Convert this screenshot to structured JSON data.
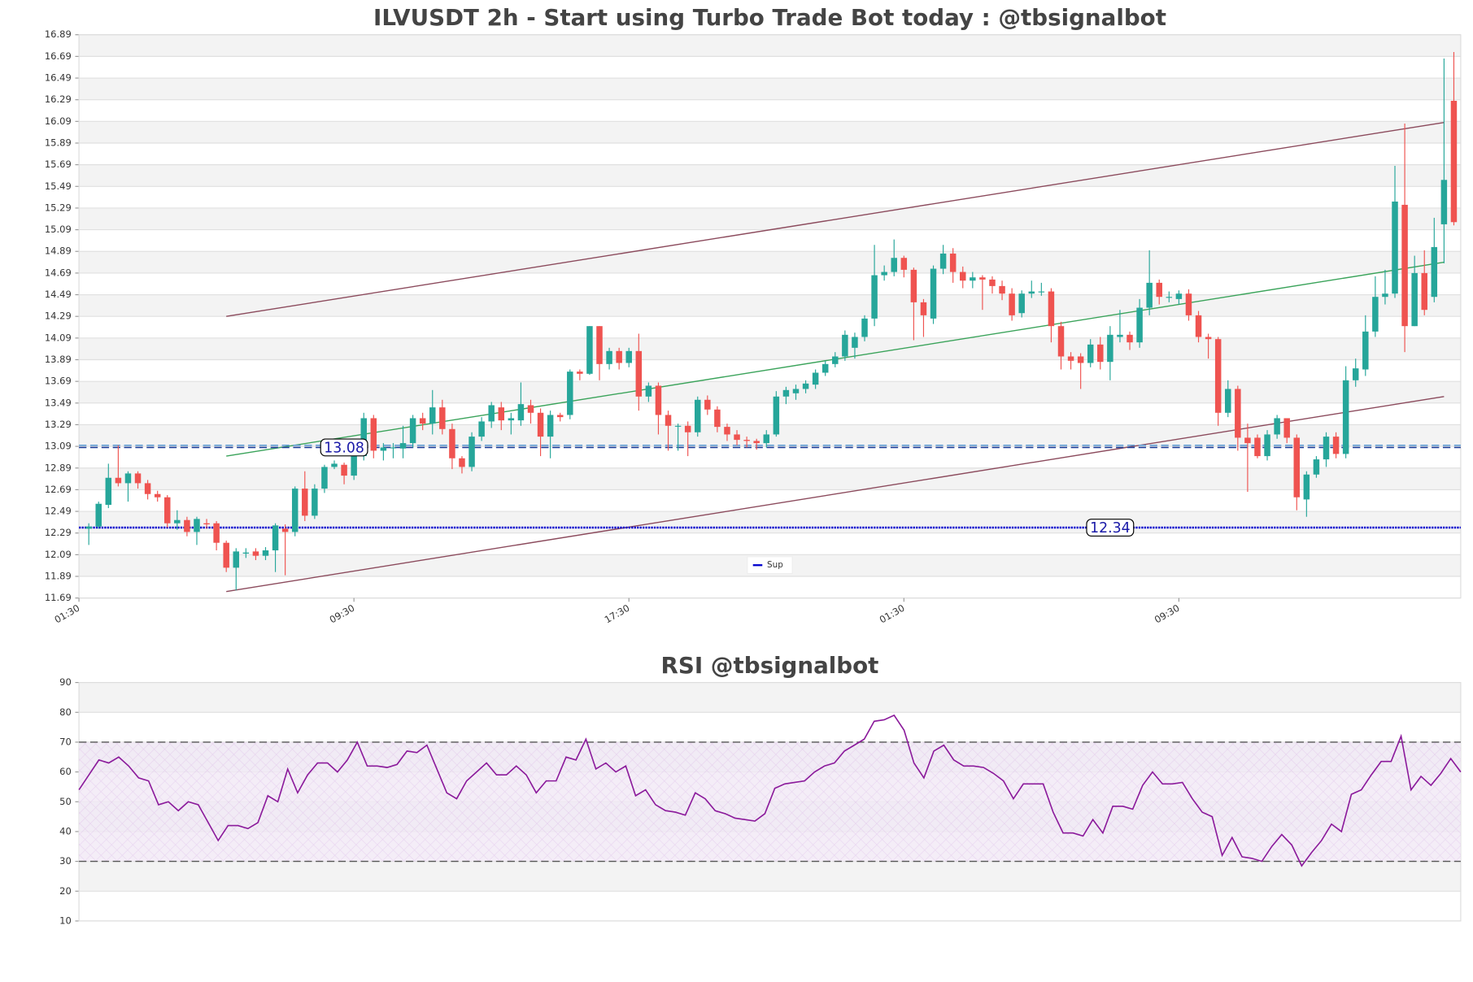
{
  "chart_data": [
    {
      "type": "candlestick",
      "title": "ILVUSDT 2h - Start using Turbo Trade Bot today : @tbsignalbot",
      "up_color": "#26a69a",
      "down_color": "#ef5350",
      "open": [
        12.33,
        12.35,
        12.55,
        12.8,
        12.75,
        12.84,
        12.75,
        12.65,
        12.62,
        12.38,
        12.41,
        12.3,
        12.38,
        12.38,
        12.2,
        11.97,
        12.1,
        12.12,
        12.08,
        12.13,
        12.33,
        12.3,
        12.7,
        12.45,
        12.7,
        12.9,
        12.92,
        12.82,
        13.0,
        13.35,
        13.05,
        13.08,
        13.07,
        13.12,
        13.35,
        13.3,
        13.45,
        13.25,
        12.98,
        12.9,
        13.18,
        13.32,
        13.45,
        13.33,
        13.33,
        13.47,
        13.4,
        13.18,
        13.38,
        13.38,
        13.78,
        13.76,
        14.2,
        13.85,
        13.97,
        13.86,
        13.97,
        13.55,
        13.65,
        13.38,
        13.28,
        13.28,
        13.22,
        13.52,
        13.43,
        13.27,
        13.2,
        13.15,
        13.14,
        13.12,
        13.2,
        13.55,
        13.58,
        13.62,
        13.66,
        13.77,
        13.85,
        13.92,
        14.0,
        14.1,
        14.27,
        14.67,
        14.7,
        14.83,
        14.72,
        14.42,
        14.27,
        14.73,
        14.87,
        14.7,
        14.62,
        14.65,
        14.63,
        14.57,
        14.5,
        14.32,
        14.5,
        14.52,
        14.52,
        14.2,
        13.92,
        13.92,
        13.86,
        14.03,
        13.87,
        14.1,
        14.12,
        14.05,
        14.37,
        14.6,
        14.47,
        14.45,
        14.5,
        14.3,
        14.1,
        14.08,
        13.4,
        13.62,
        13.17,
        13.17,
        13.0,
        13.2,
        13.35,
        13.17,
        12.6,
        12.83,
        12.97,
        13.18,
        13.02,
        13.7,
        13.8,
        14.15,
        14.47,
        14.5,
        15.32,
        14.2,
        14.69,
        14.47,
        15.14,
        16.28
      ],
      "high": [
        12.38,
        12.58,
        12.93,
        13.1,
        12.86,
        12.86,
        12.78,
        12.68,
        12.64,
        12.5,
        12.44,
        12.44,
        12.42,
        12.4,
        12.22,
        12.15,
        12.15,
        12.15,
        12.16,
        12.38,
        12.37,
        12.72,
        12.86,
        12.74,
        12.92,
        12.96,
        12.94,
        13.04,
        13.4,
        13.38,
        13.12,
        13.12,
        13.28,
        13.38,
        13.4,
        13.61,
        13.52,
        13.3,
        13.0,
        13.22,
        13.36,
        13.5,
        13.5,
        13.4,
        13.68,
        13.52,
        13.44,
        13.42,
        13.4,
        13.8,
        13.8,
        14.2,
        14.2,
        14.0,
        14.0,
        14.0,
        14.13,
        13.68,
        13.68,
        13.42,
        13.3,
        13.32,
        13.55,
        13.56,
        13.46,
        13.3,
        13.24,
        13.18,
        13.16,
        13.24,
        13.6,
        13.64,
        13.66,
        13.7,
        13.8,
        13.88,
        13.96,
        14.16,
        14.14,
        14.3,
        14.95,
        14.76,
        15.0,
        14.85,
        14.74,
        14.45,
        14.76,
        14.95,
        14.92,
        14.75,
        14.7,
        14.67,
        14.66,
        14.62,
        14.55,
        14.53,
        14.62,
        14.6,
        14.55,
        14.24,
        13.96,
        13.95,
        14.08,
        14.1,
        14.2,
        14.35,
        14.15,
        14.45,
        14.9,
        14.63,
        14.52,
        14.53,
        14.54,
        14.34,
        14.13,
        14.1,
        13.7,
        13.65,
        13.3,
        13.2,
        13.24,
        13.38,
        13.3,
        13.2,
        12.86,
        13.0,
        13.22,
        13.22,
        13.83,
        13.9,
        14.3,
        14.66,
        14.72,
        15.68,
        16.07,
        14.85,
        14.9,
        15.2,
        16.67,
        16.73
      ],
      "low": [
        12.18,
        12.33,
        12.52,
        12.72,
        12.58,
        12.7,
        12.6,
        12.58,
        12.34,
        12.32,
        12.26,
        12.18,
        12.33,
        12.13,
        11.93,
        11.76,
        12.06,
        12.04,
        12.04,
        11.93,
        11.9,
        12.26,
        12.4,
        12.42,
        12.66,
        12.88,
        12.74,
        12.78,
        12.96,
        12.98,
        12.96,
        12.98,
        12.98,
        13.08,
        13.24,
        13.2,
        13.2,
        12.88,
        12.84,
        12.86,
        13.14,
        13.26,
        13.24,
        13.2,
        13.28,
        13.3,
        13.0,
        12.98,
        13.32,
        13.34,
        13.7,
        13.75,
        13.7,
        13.8,
        13.8,
        13.82,
        13.42,
        13.5,
        13.2,
        13.05,
        13.05,
        13.0,
        13.18,
        13.38,
        13.22,
        13.14,
        13.1,
        13.08,
        13.06,
        13.08,
        13.18,
        13.48,
        13.52,
        13.58,
        13.62,
        13.74,
        13.82,
        13.88,
        13.9,
        14.06,
        14.2,
        14.62,
        14.66,
        14.65,
        14.07,
        14.1,
        14.22,
        14.68,
        14.6,
        14.55,
        14.55,
        14.35,
        14.5,
        14.44,
        14.25,
        14.28,
        14.46,
        14.48,
        14.05,
        13.8,
        13.8,
        13.62,
        13.82,
        13.8,
        13.7,
        14.05,
        13.98,
        14.0,
        14.3,
        14.4,
        14.42,
        14.4,
        14.25,
        14.05,
        13.9,
        13.28,
        13.36,
        13.05,
        12.67,
        12.98,
        12.96,
        13.16,
        13.12,
        12.5,
        12.44,
        12.8,
        12.9,
        12.98,
        12.98,
        13.64,
        13.74,
        14.1,
        14.4,
        14.46,
        13.96,
        14.2,
        14.3,
        14.42,
        14.78,
        15.13
      ],
      "close": [
        12.35,
        12.56,
        12.8,
        12.75,
        12.84,
        12.75,
        12.65,
        12.62,
        12.38,
        12.41,
        12.3,
        12.42,
        12.37,
        12.2,
        11.97,
        12.12,
        12.11,
        12.08,
        12.13,
        12.36,
        12.3,
        12.7,
        12.45,
        12.7,
        12.9,
        12.93,
        12.82,
        13.0,
        13.35,
        13.05,
        13.08,
        13.08,
        13.12,
        13.35,
        13.3,
        13.45,
        13.25,
        12.98,
        12.9,
        13.18,
        13.32,
        13.47,
        13.33,
        13.35,
        13.48,
        13.4,
        13.18,
        13.38,
        13.36,
        13.78,
        13.76,
        14.2,
        13.85,
        13.97,
        13.86,
        13.97,
        13.55,
        13.65,
        13.38,
        13.28,
        13.28,
        13.22,
        13.52,
        13.43,
        13.27,
        13.2,
        13.15,
        13.14,
        13.12,
        13.2,
        13.55,
        13.61,
        13.62,
        13.67,
        13.77,
        13.85,
        13.92,
        14.12,
        14.1,
        14.27,
        14.67,
        14.7,
        14.83,
        14.72,
        14.42,
        14.3,
        14.73,
        14.87,
        14.7,
        14.62,
        14.65,
        14.63,
        14.57,
        14.5,
        14.3,
        14.5,
        14.52,
        14.52,
        14.2,
        13.92,
        13.88,
        13.86,
        14.03,
        13.87,
        14.12,
        14.12,
        14.05,
        14.37,
        14.6,
        14.47,
        14.47,
        14.5,
        14.3,
        14.1,
        14.08,
        13.4,
        13.62,
        13.17,
        13.12,
        13.0,
        13.2,
        13.35,
        13.17,
        12.62,
        12.83,
        12.97,
        13.18,
        13.02,
        13.7,
        13.81,
        14.15,
        14.47,
        14.5,
        15.35,
        14.2,
        14.69,
        14.35,
        14.93,
        15.55,
        15.16
      ],
      "xlim": [
        -1,
        139.7
      ],
      "xticks": [
        {
          "value": -1,
          "label": "01:30"
        },
        {
          "value": 27,
          "label": "09:30"
        },
        {
          "value": 55,
          "label": "17:30"
        },
        {
          "value": 83,
          "label": "01:30"
        },
        {
          "value": 111,
          "label": "09:30"
        }
      ],
      "ylim": [
        11.69,
        16.89
      ],
      "yticks": [
        11.69,
        11.89,
        12.09,
        12.29,
        12.49,
        12.69,
        12.89,
        13.09,
        13.29,
        13.49,
        13.69,
        13.89,
        14.09,
        14.29,
        14.49,
        14.69,
        14.89,
        15.09,
        15.29,
        15.49,
        15.69,
        15.89,
        16.09,
        16.29,
        16.49,
        16.69,
        16.89
      ],
      "grid": true,
      "trendlines": [
        {
          "x": [
            14,
            138
          ],
          "values": [
            14.29,
            16.08
          ],
          "color": "#8b4a5c"
        },
        {
          "x": [
            14,
            138
          ],
          "values": [
            11.75,
            13.55
          ],
          "color": "#8b4a5c"
        },
        {
          "x": [
            14,
            138
          ],
          "values": [
            13.0,
            14.79
          ],
          "color": "#3aa35a"
        }
      ],
      "levels": [
        {
          "value": 13.08,
          "color": "#1f3f99",
          "style": "dashed"
        },
        {
          "value": 12.34,
          "color": "#0000cd",
          "style": "dotted"
        }
      ],
      "extra_levels": [
        {
          "value": 13.1,
          "color": "#5b9bd5",
          "style": "dashed"
        }
      ],
      "legend": "lower center",
      "legend_entries": [
        {
          "name": "Sup",
          "color": "#0000cd"
        }
      ]
    },
    {
      "type": "line",
      "title": "RSI @tbsignalbot",
      "color": "#8b1a9b",
      "values": [
        54,
        59,
        64,
        63,
        65,
        62,
        58,
        57,
        49,
        50,
        47,
        50,
        49,
        43,
        37,
        42,
        42,
        41,
        43,
        52,
        50,
        61,
        53,
        59,
        63,
        63,
        60,
        64,
        70,
        62,
        62,
        61.5,
        62.5,
        67,
        66.5,
        69,
        61,
        53,
        51,
        57,
        60,
        63,
        59,
        59,
        62,
        59,
        53,
        57,
        57,
        65,
        64,
        71,
        61,
        63,
        60,
        62,
        52,
        54,
        49,
        47,
        46.5,
        45.5,
        53,
        51,
        47,
        46,
        44.5,
        44,
        43.5,
        46,
        54.5,
        56,
        56.5,
        57,
        60,
        62,
        63,
        67,
        69,
        71,
        77,
        77.5,
        79,
        74,
        63,
        58,
        67,
        69,
        64,
        62,
        62,
        61.5,
        59.5,
        57,
        51,
        56,
        56,
        56,
        46.5,
        39.5,
        39.5,
        38.5,
        44,
        39.5,
        48.5,
        48.5,
        47.5,
        55.5,
        60,
        56,
        56,
        56.5,
        51,
        46.5,
        45,
        32,
        38,
        31.5,
        31,
        30,
        35,
        39,
        35.5,
        28.5,
        33,
        37,
        42.5,
        40,
        52.5,
        54,
        59,
        63.5,
        63.5,
        72,
        54,
        58.5,
        55.5,
        59.5,
        64.5,
        60
      ],
      "ylim": [
        10,
        90
      ],
      "yticks": [
        10,
        20,
        30,
        40,
        50,
        60,
        70,
        80,
        90
      ],
      "grid": true,
      "band": [
        30,
        70
      ],
      "levels": [
        {
          "value": 70,
          "color": "#555555",
          "style": "dashed"
        },
        {
          "value": 30,
          "color": "#555555",
          "style": "dashed"
        }
      ]
    }
  ]
}
